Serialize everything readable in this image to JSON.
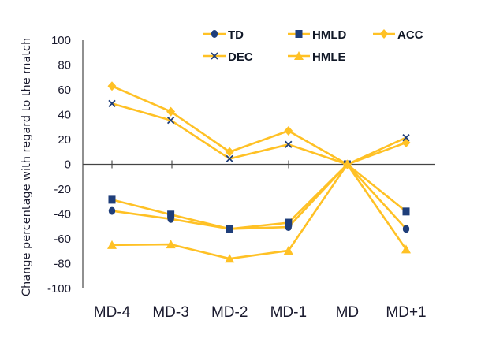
{
  "chart_data": {
    "type": "line",
    "title": "",
    "xlabel": "",
    "ylabel": "Change percentage with regard to the match",
    "categories": [
      "MD-4",
      "MD-3",
      "MD-2",
      "MD-1",
      "MD",
      "MD+1"
    ],
    "ylim": [
      -100,
      100
    ],
    "yticks": [
      100,
      80,
      60,
      40,
      20,
      0,
      -20,
      -40,
      -60,
      -80,
      -100
    ],
    "grid": false,
    "legend_position": "top",
    "line_color": "#FFC125",
    "marker_color": "#1F3E7A",
    "series": [
      {
        "name": "TD",
        "marker": "circle",
        "values": [
          -37.5,
          -44,
          -52,
          -50.5,
          0,
          -52
        ]
      },
      {
        "name": "HMLD",
        "marker": "square",
        "values": [
          -28.5,
          -40.5,
          -52,
          -47,
          0,
          -38
        ]
      },
      {
        "name": "ACC",
        "marker": "diamond",
        "values": [
          63,
          42.5,
          10,
          27,
          0,
          17.5
        ]
      },
      {
        "name": "DEC",
        "marker": "x",
        "values": [
          49,
          35.5,
          4.5,
          16,
          0,
          21.5
        ]
      },
      {
        "name": "HMLE",
        "marker": "triangle",
        "values": [
          -65,
          -64.5,
          -76,
          -69.5,
          0,
          -68.5
        ]
      }
    ]
  }
}
